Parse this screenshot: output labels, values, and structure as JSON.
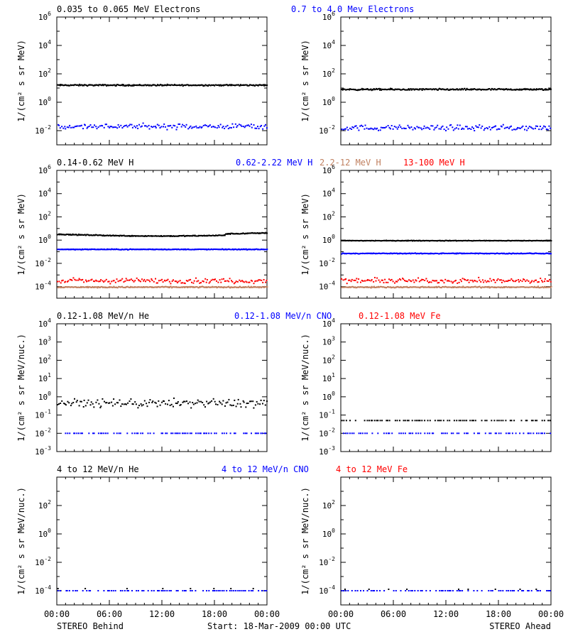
{
  "colors": {
    "black": "#000000",
    "blue": "#0000ff",
    "red": "#ff0000",
    "tan": "#c08060"
  },
  "footer": {
    "left": "STEREO Behind",
    "center": "Start: 18-Mar-2009 00:00 UTC",
    "right": "STEREO Ahead"
  },
  "chart_data": [
    {
      "type": "scatter",
      "panel": "electrons",
      "log_scale": true,
      "ylabel": "1/(cm² s sr MeV)",
      "ylim_exp": [
        -3,
        6
      ],
      "ytick_exps": [
        -2,
        0,
        2,
        4,
        6
      ],
      "xlim_hours": [
        0,
        24
      ],
      "xticks": [
        "00:00",
        "06:00",
        "12:00",
        "18:00",
        "00:00"
      ],
      "legend": [
        {
          "label": "0.035 to 0.065 MeV Electrons",
          "color": "black"
        },
        {
          "label": "0.7 to 4.0 Mev Electrons",
          "color": "blue"
        }
      ],
      "series": {
        "behind": [
          {
            "color": "black",
            "log_level": 1.2,
            "noise": 0.06,
            "style": "band"
          },
          {
            "color": "blue",
            "log_level": -1.7,
            "noise": 0.15,
            "style": "sparse"
          }
        ],
        "ahead": [
          {
            "color": "black",
            "log_level": 0.9,
            "noise": 0.07,
            "style": "band"
          },
          {
            "color": "blue",
            "log_level": -1.8,
            "noise": 0.15,
            "style": "sparse"
          }
        ]
      }
    },
    {
      "type": "scatter",
      "panel": "protons",
      "log_scale": true,
      "ylabel": "1/(cm² s sr MeV)",
      "ylim_exp": [
        -5,
        6
      ],
      "ytick_exps": [
        -4,
        -2,
        0,
        2,
        4,
        6
      ],
      "xlim_hours": [
        0,
        24
      ],
      "xticks": [
        "00:00",
        "06:00",
        "12:00",
        "18:00",
        "00:00"
      ],
      "legend": [
        {
          "label": "0.14-0.62 MeV H",
          "color": "black"
        },
        {
          "label": "0.62-2.22 MeV H",
          "color": "blue"
        },
        {
          "label": "2.2-12 MeV H",
          "color": "tan"
        },
        {
          "label": "13-100 MeV H",
          "color": "red"
        }
      ],
      "series": {
        "behind": [
          {
            "color": "black",
            "log_level": 0.5,
            "noise": 0.05,
            "style": "band",
            "bump": true
          },
          {
            "color": "blue",
            "log_level": -0.8,
            "noise": 0.04,
            "style": "band"
          },
          {
            "color": "red",
            "log_level": -3.5,
            "noise": 0.18,
            "style": "sparse"
          },
          {
            "color": "tan",
            "log_level": -4.05,
            "noise": 0.06,
            "style": "band"
          }
        ],
        "ahead": [
          {
            "color": "black",
            "log_level": -0.05,
            "noise": 0.03,
            "style": "band"
          },
          {
            "color": "blue",
            "log_level": -1.15,
            "noise": 0.04,
            "style": "band"
          },
          {
            "color": "red",
            "log_level": -3.5,
            "noise": 0.18,
            "style": "sparse"
          },
          {
            "color": "tan",
            "log_level": -4.05,
            "noise": 0.06,
            "style": "band"
          }
        ]
      }
    },
    {
      "type": "scatter",
      "panel": "heavy_low",
      "log_scale": true,
      "ylabel": "1/(cm² s sr MeV/nuc.)",
      "ylim_exp": [
        -3,
        4
      ],
      "ytick_exps": [
        -3,
        -2,
        -1,
        0,
        1,
        2,
        3,
        4
      ],
      "xlim_hours": [
        0,
        24
      ],
      "xticks": [
        "00:00",
        "06:00",
        "12:00",
        "18:00",
        "00:00"
      ],
      "legend": [
        {
          "label": "0.12-1.08 MeV/n He",
          "color": "black"
        },
        {
          "label": "0.12-1.08 MeV/n CNO",
          "color": "blue"
        },
        {
          "label": "0.12-1.08 MeV Fe",
          "color": "red"
        }
      ],
      "series": {
        "behind": [
          {
            "color": "black",
            "log_level": -0.35,
            "noise": 0.2,
            "style": "scatter"
          },
          {
            "color": "blue",
            "log_level": -2.0,
            "noise": 0.0,
            "style": "floor"
          }
        ],
        "ahead": [
          {
            "color": "black",
            "log_level": -1.3,
            "noise": 0.0,
            "style": "floor"
          },
          {
            "color": "blue",
            "log_level": -2.0,
            "noise": 0.0,
            "style": "floor"
          }
        ]
      }
    },
    {
      "type": "scatter",
      "panel": "heavy_high",
      "log_scale": true,
      "ylabel": "1/(cm² s sr MeV/nuc.)",
      "ylim_exp": [
        -5,
        4
      ],
      "ytick_exps": [
        -4,
        -2,
        0,
        2
      ],
      "xlim_hours": [
        0,
        24
      ],
      "xticks": [
        "00:00",
        "06:00",
        "12:00",
        "18:00",
        "00:00"
      ],
      "legend": [
        {
          "label": "4 to 12 MeV/n He",
          "color": "black"
        },
        {
          "label": "4 to 12 MeV/n CNO",
          "color": "blue"
        },
        {
          "label": "4 to 12 MeV Fe",
          "color": "red"
        }
      ],
      "series": {
        "behind": [
          {
            "color": "blue",
            "log_level": -4.0,
            "noise": 0.0,
            "style": "floor"
          },
          {
            "color": "black",
            "log_level": -3.85,
            "noise": 0.0,
            "style": "rare"
          }
        ],
        "ahead": [
          {
            "color": "blue",
            "log_level": -4.0,
            "noise": 0.0,
            "style": "floor"
          },
          {
            "color": "black",
            "log_level": -3.9,
            "noise": 0.0,
            "style": "rare"
          }
        ]
      }
    }
  ]
}
